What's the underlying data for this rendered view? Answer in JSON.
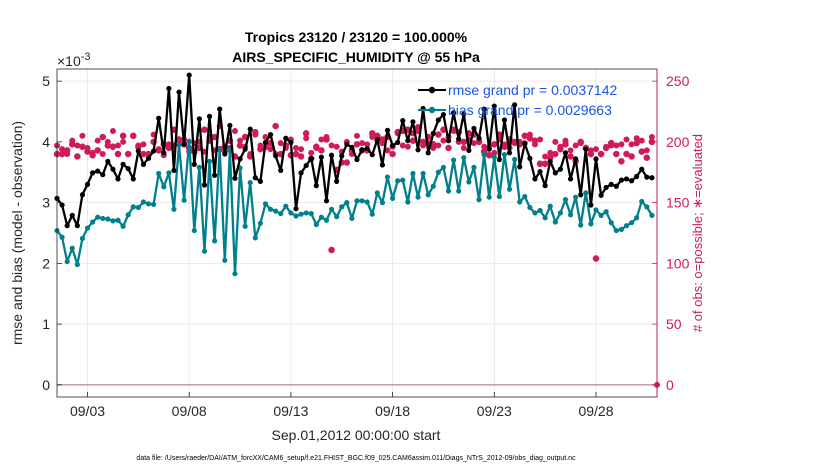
{
  "chart_data": {
    "type": "line",
    "title": "Tropics 23120 / 23120 = 100.000%",
    "subtitle": "AIRS_SPECIFIC_HUMIDITY @ 55 hPa",
    "xlabel": "Sep.01,2012 00:00:00 start",
    "ylabel_left": "rmse and bias (model - observation)",
    "ylabel_right": "# of obs: o=possible; ∗=evaluated",
    "y_exponent_label": "×10",
    "y_exponent": "-3",
    "footnote": "data file: /Users/raeder/DAI/ATM_forcXX/CAM6_setup/f.e21.FHIST_BGC.f09_025.CAM6assim.011/Diags_NTrS_2012-09/obs_diag_output.nc",
    "x_ticks": [
      "09/03",
      "09/08",
      "09/13",
      "09/18",
      "09/23",
      "09/28"
    ],
    "x_tick_days": [
      3,
      8,
      13,
      18,
      23,
      28
    ],
    "xlim_days": [
      1.5,
      31.0
    ],
    "ylim_left": [
      -0.0002,
      0.0052
    ],
    "ylim_right": [
      -10,
      260
    ],
    "y_ticks_left": [
      "0",
      "1",
      "2",
      "3",
      "4",
      "5"
    ],
    "y_tick_values_left": [
      0,
      0.001,
      0.002,
      0.003,
      0.004,
      0.005
    ],
    "y_ticks_right": [
      "0",
      "50",
      "100",
      "150",
      "200",
      "250"
    ],
    "y_tick_values_right": [
      0,
      50,
      100,
      150,
      200,
      250
    ],
    "x_days": [
      1.5,
      1.75,
      2.0,
      2.25,
      2.5,
      2.75,
      3.0,
      3.25,
      3.5,
      3.75,
      4.0,
      4.25,
      4.5,
      4.75,
      5.0,
      5.25,
      5.5,
      5.75,
      6.0,
      6.25,
      6.5,
      6.75,
      7.0,
      7.25,
      7.5,
      7.75,
      8.0,
      8.25,
      8.5,
      8.75,
      9.0,
      9.25,
      9.5,
      9.75,
      10.0,
      10.25,
      10.5,
      10.75,
      11.0,
      11.25,
      11.5,
      11.75,
      12.0,
      12.25,
      12.5,
      12.75,
      13.0,
      13.25,
      13.5,
      13.75,
      14.0,
      14.25,
      14.5,
      14.75,
      15.0,
      15.25,
      15.5,
      15.75,
      16.0,
      16.25,
      16.5,
      16.75,
      17.0,
      17.25,
      17.5,
      17.75,
      18.0,
      18.25,
      18.5,
      18.75,
      19.0,
      19.25,
      19.5,
      19.75,
      20.0,
      20.25,
      20.5,
      20.75,
      21.0,
      21.25,
      21.5,
      21.75,
      22.0,
      22.25,
      22.5,
      22.75,
      23.0,
      23.25,
      23.5,
      23.75,
      24.0,
      24.25,
      24.5,
      24.75,
      25.0,
      25.25,
      25.5,
      25.75,
      26.0,
      26.25,
      26.5,
      26.75,
      27.0,
      27.25,
      27.5,
      27.75,
      28.0,
      28.25,
      28.5,
      28.75,
      29.0,
      29.25,
      29.5,
      29.75,
      30.0,
      30.25,
      30.5,
      30.75
    ],
    "series": [
      {
        "name": "rmse",
        "legend": "rmse grand pr = 0.0037142",
        "color": "#000000",
        "axis": "left",
        "values": [
          0.00307,
          0.00296,
          0.00262,
          0.00279,
          0.00262,
          0.00313,
          0.0033,
          0.00349,
          0.00352,
          0.00346,
          0.00368,
          0.00355,
          0.00339,
          0.00363,
          0.00356,
          0.00339,
          0.00385,
          0.00363,
          0.00373,
          0.00385,
          0.00439,
          0.00382,
          0.00488,
          0.00353,
          0.00482,
          0.00396,
          0.0051,
          0.00363,
          0.00438,
          0.00329,
          0.00442,
          0.00345,
          0.00454,
          0.0038,
          0.00427,
          0.0034,
          0.00372,
          0.00388,
          0.00421,
          0.00341,
          0.00335,
          0.00399,
          0.00412,
          0.00377,
          0.00353,
          0.00406,
          0.00399,
          0.0029,
          0.00349,
          0.00361,
          0.00373,
          0.00328,
          0.00375,
          0.00303,
          0.00378,
          0.00335,
          0.00377,
          0.00396,
          0.00391,
          0.00371,
          0.00387,
          0.00389,
          0.00379,
          0.00404,
          0.00362,
          0.00419,
          0.00394,
          0.00399,
          0.00435,
          0.00402,
          0.00433,
          0.00387,
          0.00455,
          0.00382,
          0.00414,
          0.00436,
          0.00445,
          0.00402,
          0.00448,
          0.00405,
          0.00446,
          0.00386,
          0.00422,
          0.00406,
          0.00454,
          0.00388,
          0.00459,
          0.00371,
          0.00436,
          0.00382,
          0.00461,
          0.00359,
          0.00397,
          0.00373,
          0.00339,
          0.00351,
          0.00328,
          0.00368,
          0.00349,
          0.00355,
          0.00382,
          0.00339,
          0.00372,
          0.00313,
          0.00388,
          0.00296,
          0.00372,
          0.00312,
          0.00325,
          0.0033,
          0.00327,
          0.00337,
          0.00339,
          0.00336,
          0.00343,
          0.00355,
          0.00342,
          0.00341
        ]
      },
      {
        "name": "bias",
        "legend": "bias grand pr = 0.0029663",
        "color": "#00808c",
        "axis": "left",
        "values": [
          0.00254,
          0.00243,
          0.00203,
          0.00225,
          0.00198,
          0.00241,
          0.00258,
          0.00268,
          0.00276,
          0.00274,
          0.00273,
          0.0027,
          0.00271,
          0.00261,
          0.0028,
          0.00293,
          0.00292,
          0.00301,
          0.00298,
          0.00297,
          0.00348,
          0.00326,
          0.00349,
          0.00289,
          0.00395,
          0.00304,
          0.00401,
          0.00254,
          0.00358,
          0.0022,
          0.00368,
          0.00237,
          0.00387,
          0.00205,
          0.00386,
          0.00183,
          0.00357,
          0.00261,
          0.00333,
          0.00242,
          0.00266,
          0.00298,
          0.00289,
          0.00286,
          0.00282,
          0.00294,
          0.00283,
          0.00278,
          0.00281,
          0.00283,
          0.00282,
          0.00264,
          0.00276,
          0.00271,
          0.00289,
          0.00277,
          0.00293,
          0.003,
          0.00274,
          0.00303,
          0.00303,
          0.00301,
          0.00281,
          0.00316,
          0.003,
          0.00342,
          0.00307,
          0.00336,
          0.00337,
          0.00301,
          0.00348,
          0.00309,
          0.00348,
          0.00313,
          0.00327,
          0.0035,
          0.00358,
          0.00319,
          0.0037,
          0.00319,
          0.00374,
          0.00334,
          0.00358,
          0.00305,
          0.00379,
          0.00309,
          0.00375,
          0.0031,
          0.00379,
          0.00322,
          0.00371,
          0.00301,
          0.0031,
          0.00292,
          0.00283,
          0.00287,
          0.00275,
          0.00294,
          0.00268,
          0.00283,
          0.00305,
          0.0028,
          0.00309,
          0.00263,
          0.00316,
          0.00265,
          0.00288,
          0.00279,
          0.00285,
          0.00267,
          0.00254,
          0.00256,
          0.00262,
          0.00267,
          0.00275,
          0.00302,
          0.00293,
          0.00279
        ]
      },
      {
        "name": "obs possible",
        "legend": "o = possible",
        "color": "#d11a5a",
        "axis": "right",
        "marker": "circle",
        "values": [
          197,
          194,
          190,
          201,
          197,
          205,
          195,
          191,
          201,
          190,
          200,
          209,
          197,
          200,
          190,
          205,
          197,
          198,
          190,
          206,
          194,
          189,
          198,
          197,
          201,
          202,
          192,
          199,
          200,
          192,
          204,
          193,
          213,
          192,
          195,
          209,
          201,
          196,
          190,
          206,
          197,
          204,
          194,
          190,
          199,
          195,
          202,
          195,
          194,
          203,
          191,
          195,
          202,
          204,
          197,
          196,
          192,
          200,
          190,
          205,
          199,
          198,
          204,
          201,
          199,
          193,
          196,
          207,
          197,
          196,
          207,
          209,
          197,
          199,
          195,
          197,
          201,
          204,
          209,
          200,
          195,
          202,
          199,
          200,
          196,
          196,
          191,
          202,
          198,
          195,
          199,
          200,
          199,
          206,
          198,
          202,
          188,
          191,
          200,
          196,
          201,
          193,
          197,
          199,
          195,
          193,
          194,
          190,
          196,
          197,
          197,
          198,
          202,
          198,
          203,
          201,
          193,
          204
        ]
      },
      {
        "name": "obs evaluated",
        "legend": "∗ = evaluated",
        "color": "#d11a5a",
        "axis": "right",
        "marker": "asterisk",
        "values": [
          190,
          190,
          193,
          198,
          188,
          196,
          192,
          189,
          193,
          204,
          197,
          196,
          190,
          205,
          190,
          205,
          196,
          190,
          190,
          200,
          193,
          198,
          195,
          210,
          202,
          198,
          195,
          192,
          195,
          210,
          201,
          204,
          194,
          196,
          201,
          188,
          197,
          204,
          188,
          208,
          194,
          196,
          199,
          213,
          190,
          197,
          189,
          190,
          188,
          207,
          186,
          196,
          193,
          202,
          111,
          177,
          183,
          183,
          193,
          198,
          193,
          193,
          207,
          205,
          202,
          204,
          190,
          208,
          209,
          210,
          201,
          212,
          200,
          204,
          198,
          206,
          210,
          195,
          210,
          208,
          200,
          207,
          206,
          200,
          192,
          189,
          198,
          206,
          196,
          202,
          200,
          198,
          205,
          203,
          201,
          182,
          182,
          187,
          190,
          194,
          198,
          188,
          184,
          200,
          195,
          190,
          104,
          190,
          195,
          199,
          190,
          184,
          190,
          188,
          199,
          192,
          187,
          200
        ]
      }
    ],
    "zero_marker": {
      "value": 0,
      "color": "#d11a5a"
    }
  }
}
